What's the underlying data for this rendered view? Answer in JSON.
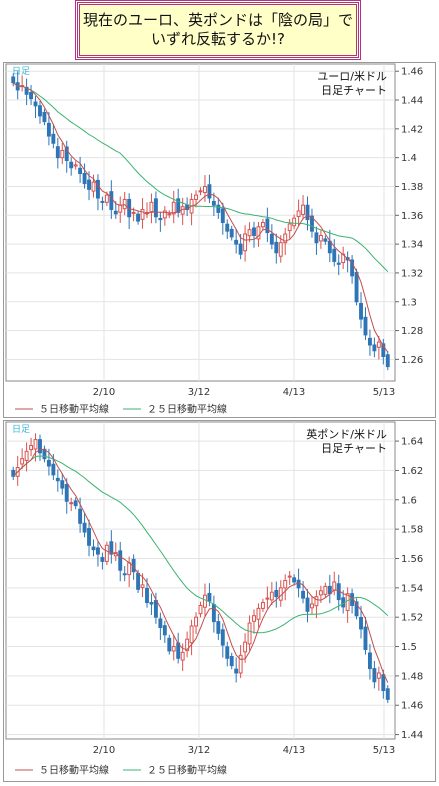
{
  "title": {
    "line1": "現在のユーロ、英ポンドは「陰の局」で",
    "line2": "いずれ反転するか!?"
  },
  "colors": {
    "up": "#d9534f",
    "down": "#2e75b6",
    "ma5": "#c0504d",
    "ma25": "#3cb371",
    "title_border": "#b0308a",
    "title_bg": "#ffffc8"
  },
  "chart_data": [
    {
      "type": "candlestick",
      "corner_label": "日足",
      "title": "ユーロ/米ドル\n日足チャート",
      "x_ticks": [
        "2/10",
        "3/12",
        "4/13",
        "5/13"
      ],
      "y_ticks": [
        "1.46",
        "1.44",
        "1.42",
        "1.4",
        "1.38",
        "1.36",
        "1.34",
        "1.32",
        "1.3",
        "1.28",
        "1.26"
      ],
      "ylim": [
        1.245,
        1.465
      ],
      "grid": true,
      "legend": [
        "５日移動平均線",
        "２５日移動平均線"
      ],
      "legend_position": "bottom-left",
      "closes": [
        1.452,
        1.447,
        1.45,
        1.444,
        1.441,
        1.436,
        1.429,
        1.425,
        1.415,
        1.41,
        1.4,
        1.405,
        1.398,
        1.393,
        1.395,
        1.389,
        1.382,
        1.378,
        1.383,
        1.372,
        1.369,
        1.374,
        1.364,
        1.361,
        1.367,
        1.371,
        1.359,
        1.362,
        1.356,
        1.364,
        1.362,
        1.369,
        1.359,
        1.357,
        1.363,
        1.361,
        1.369,
        1.362,
        1.366,
        1.364,
        1.371,
        1.374,
        1.377,
        1.38,
        1.372,
        1.367,
        1.362,
        1.355,
        1.349,
        1.345,
        1.34,
        1.333,
        1.347,
        1.35,
        1.346,
        1.352,
        1.355,
        1.348,
        1.34,
        1.334,
        1.341,
        1.347,
        1.354,
        1.358,
        1.363,
        1.367,
        1.357,
        1.349,
        1.341,
        1.346,
        1.342,
        1.334,
        1.328,
        1.326,
        1.333,
        1.329,
        1.318,
        1.3,
        1.288,
        1.277,
        1.27,
        1.266,
        1.272,
        1.262,
        1.255
      ]
    },
    {
      "type": "candlestick",
      "corner_label": "日足",
      "title": "英ポンド/米ドル\n日足チャート",
      "x_ticks": [
        "2/10",
        "3/12",
        "4/13",
        "5/13"
      ],
      "y_ticks": [
        "1.64",
        "1.62",
        "1.6",
        "1.58",
        "1.56",
        "1.54",
        "1.52",
        "1.5",
        "1.48",
        "1.46",
        "1.44"
      ],
      "ylim": [
        1.437,
        1.653
      ],
      "grid": true,
      "legend": [
        "５日移動平均線",
        "２５日移動平均線"
      ],
      "legend_position": "bottom-left",
      "closes": [
        1.616,
        1.622,
        1.628,
        1.633,
        1.637,
        1.641,
        1.632,
        1.628,
        1.623,
        1.617,
        1.613,
        1.608,
        1.599,
        1.598,
        1.596,
        1.584,
        1.578,
        1.569,
        1.566,
        1.563,
        1.558,
        1.569,
        1.563,
        1.564,
        1.552,
        1.549,
        1.557,
        1.551,
        1.539,
        1.542,
        1.53,
        1.529,
        1.52,
        1.513,
        1.508,
        1.497,
        1.5,
        1.492,
        1.496,
        1.505,
        1.514,
        1.52,
        1.528,
        1.535,
        1.531,
        1.517,
        1.509,
        1.501,
        1.492,
        1.487,
        1.482,
        1.494,
        1.503,
        1.516,
        1.521,
        1.526,
        1.53,
        1.533,
        1.537,
        1.534,
        1.54,
        1.545,
        1.548,
        1.544,
        1.54,
        1.533,
        1.524,
        1.529,
        1.534,
        1.538,
        1.541,
        1.536,
        1.544,
        1.532,
        1.527,
        1.536,
        1.528,
        1.521,
        1.512,
        1.498,
        1.485,
        1.476,
        1.482,
        1.47,
        1.464
      ]
    }
  ]
}
